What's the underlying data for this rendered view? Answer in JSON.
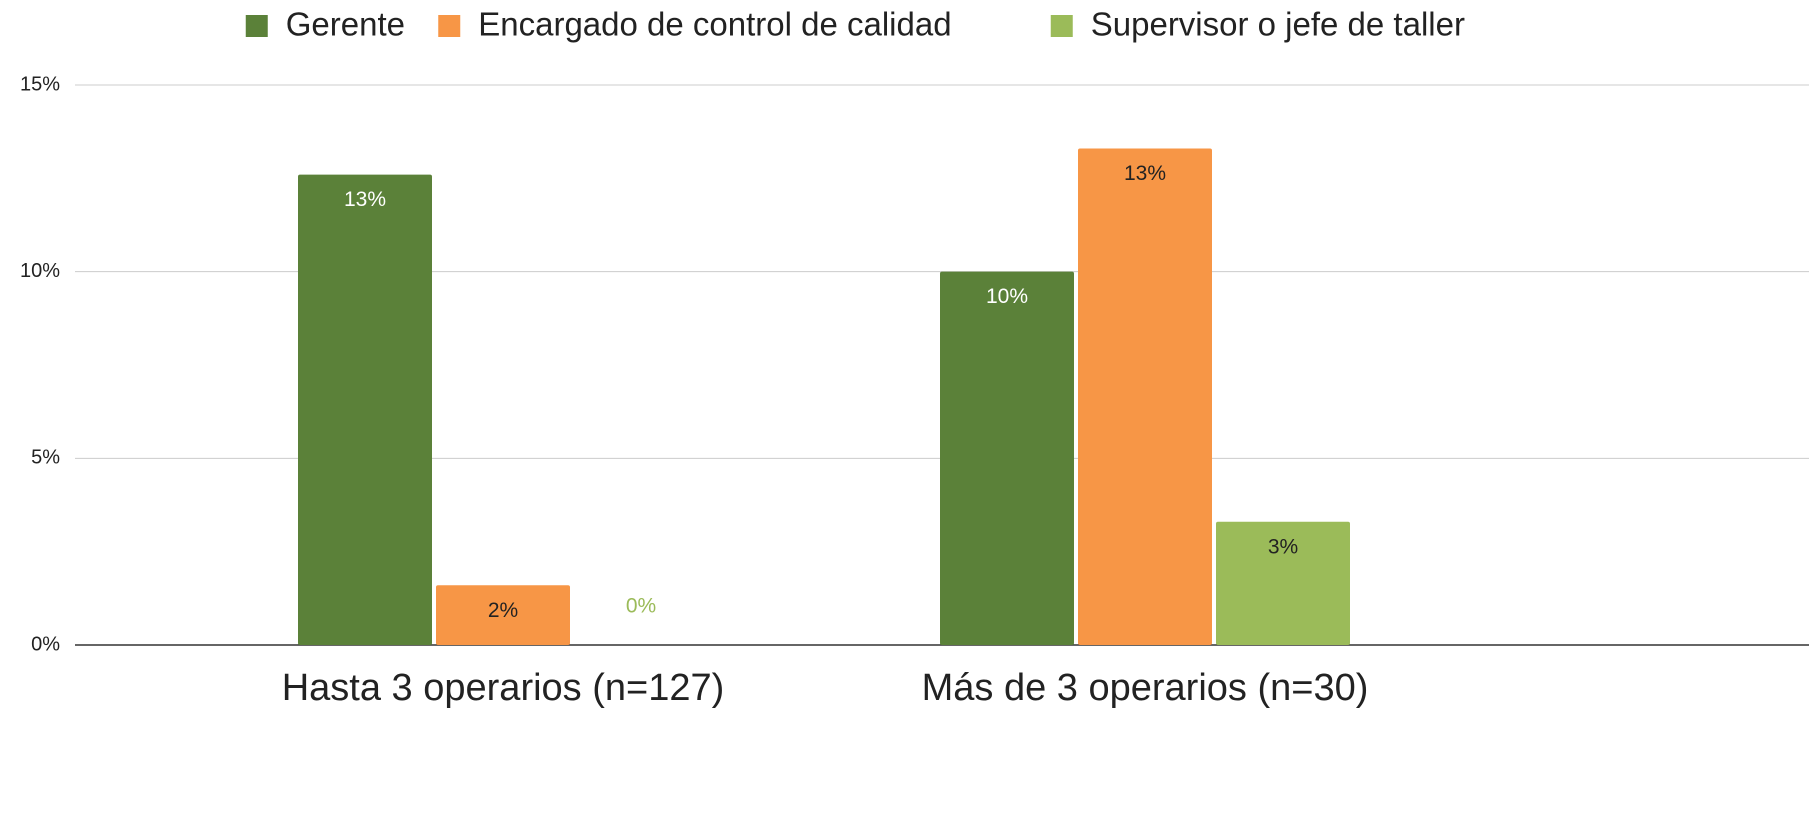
{
  "chart_data": {
    "type": "bar",
    "categories": [
      "Hasta 3 operarios (n=127)",
      "Más de 3 operarios (n=30)"
    ],
    "series": [
      {
        "name": "Gerente",
        "color": "#5b8139",
        "label_color": "#ffffff",
        "values": [
          12.6,
          10
        ],
        "value_labels": [
          "13%",
          "10%"
        ]
      },
      {
        "name": "Encargado de control de calidad",
        "color": "#f79646",
        "label_color": "#222222",
        "values": [
          1.6,
          13.3
        ],
        "value_labels": [
          "2%",
          "13%"
        ]
      },
      {
        "name": "Supervisor o jefe de taller",
        "color": "#9bbb59",
        "label_color": "#222222",
        "values": [
          0,
          3.3
        ],
        "value_labels": [
          "0%",
          "3%"
        ]
      }
    ],
    "ylim": [
      0,
      15
    ],
    "yticks": [
      {
        "value": 0,
        "label": "0%"
      },
      {
        "value": 5,
        "label": "5%"
      },
      {
        "value": 10,
        "label": "10%"
      },
      {
        "value": 15,
        "label": "15%"
      }
    ],
    "grid": true,
    "legend": "top"
  }
}
